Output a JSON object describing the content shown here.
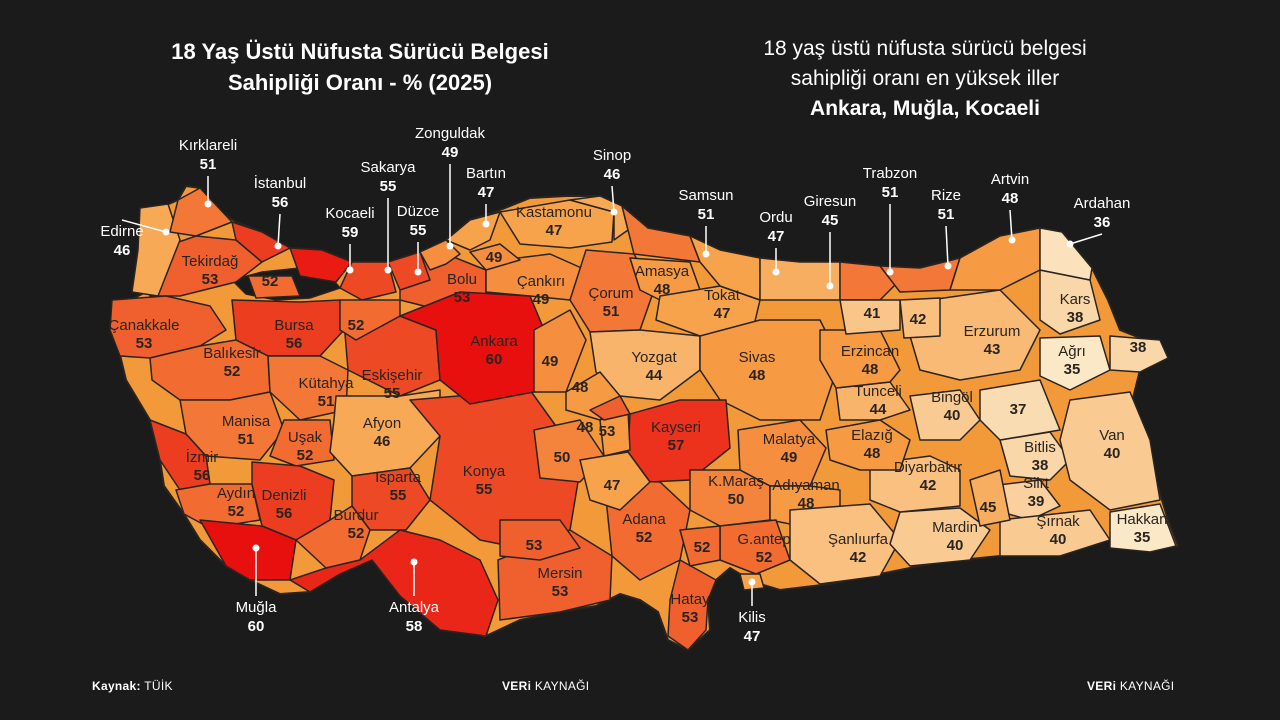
{
  "title_line1": "18 Yaş Üstü Nüfusta Sürücü Belgesi",
  "title_line2": "Sahipliği Oranı - % (2025)",
  "subtitle_line1": "18 yaş üstü nüfusta sürücü belgesi",
  "subtitle_line2": "sahipliği oranı en yüksek iller",
  "subtitle_highlight": "Ankara, Muğla, Kocaeli",
  "footer": {
    "source_label": "Kaynak:",
    "source_value": "TÜİK",
    "brand_center_bold": "VERi",
    "brand_center": "KAYNAĞI",
    "brand_right_bold": "VERi",
    "brand_right": "KAYNAĞI"
  },
  "colors": {
    "background": "#1b1b1b",
    "scale_low": "#fbe8c7",
    "scale_high": "#e80f0f",
    "border": "#2a2420"
  },
  "chart_data": {
    "type": "choropleth",
    "value_unit": "%",
    "provinces_labeled_inside": [
      {
        "name": "Tekirdağ",
        "value": 53
      },
      {
        "name": "Çanakkale",
        "value": 53
      },
      {
        "name": "Bursa",
        "value": 56
      },
      {
        "name": "Balıkesir",
        "value": 52
      },
      {
        "name": "Kütahya",
        "value": 51
      },
      {
        "name": "Eskişehir",
        "value": 55
      },
      {
        "name": "Manisa",
        "value": 51
      },
      {
        "name": "Uşak",
        "value": 52
      },
      {
        "name": "Afyon",
        "value": 46
      },
      {
        "name": "İzmir",
        "value": 56
      },
      {
        "name": "Aydın",
        "value": 52
      },
      {
        "name": "Denizli",
        "value": 56
      },
      {
        "name": "Isparta",
        "value": 55
      },
      {
        "name": "Burdur",
        "value": 52
      },
      {
        "name": "Konya",
        "value": 55
      },
      {
        "name": "Bolu",
        "value": 53
      },
      {
        "name": "Ankara",
        "value": 60
      },
      {
        "name": "Kastamonu",
        "value": 47
      },
      {
        "name": "Çankırı",
        "value": 49
      },
      {
        "name": "Çorum",
        "value": 51
      },
      {
        "name": "Amasya",
        "value": 48
      },
      {
        "name": "Tokat",
        "value": 47
      },
      {
        "name": "Yozgat",
        "value": 44
      },
      {
        "name": "Sivas",
        "value": 48
      },
      {
        "name": "Kayseri",
        "value": 57
      },
      {
        "name": "Malatya",
        "value": 49
      },
      {
        "name": "K.Maraş",
        "value": 50
      },
      {
        "name": "Adıyaman",
        "value": 48
      },
      {
        "name": "Adana",
        "value": 52
      },
      {
        "name": "Mersin",
        "value": 53
      },
      {
        "name": "G.antep",
        "value": 52
      },
      {
        "name": "Hatay",
        "value": 53
      },
      {
        "name": "Şanlıurfa",
        "value": 42
      },
      {
        "name": "Mardin",
        "value": 40
      },
      {
        "name": "Diyarbakır",
        "value": 42
      },
      {
        "name": "Elazığ",
        "value": 48
      },
      {
        "name": "Tunceli",
        "value": 44
      },
      {
        "name": "Erzincan",
        "value": 48
      },
      {
        "name": "Bingöl",
        "value": 40
      },
      {
        "name": "Erzurum",
        "value": 43
      },
      {
        "name": "Kars",
        "value": 38
      },
      {
        "name": "Ağrı",
        "value": 35
      },
      {
        "name": "Bitlis",
        "value": 38
      },
      {
        "name": "Siirt",
        "value": 39
      },
      {
        "name": "Şırnak",
        "value": 40
      },
      {
        "name": "Van",
        "value": 40
      },
      {
        "name": "Hakkari",
        "value": 35
      }
    ],
    "provinces_labeled_outside": [
      {
        "name": "Edirne",
        "value": 46
      },
      {
        "name": "Kırklareli",
        "value": 51
      },
      {
        "name": "İstanbul",
        "value": 56
      },
      {
        "name": "Kocaeli",
        "value": 59
      },
      {
        "name": "Sakarya",
        "value": 55
      },
      {
        "name": "Düzce",
        "value": 55
      },
      {
        "name": "Zonguldak",
        "value": 49
      },
      {
        "name": "Bartın",
        "value": 47
      },
      {
        "name": "Sinop",
        "value": 46
      },
      {
        "name": "Samsun",
        "value": 51
      },
      {
        "name": "Ordu",
        "value": 47
      },
      {
        "name": "Giresun",
        "value": 45
      },
      {
        "name": "Trabzon",
        "value": 51
      },
      {
        "name": "Rize",
        "value": 51
      },
      {
        "name": "Artvin",
        "value": 48
      },
      {
        "name": "Ardahan",
        "value": 36
      },
      {
        "name": "Muğla",
        "value": 60
      },
      {
        "name": "Antalya",
        "value": 58
      },
      {
        "name": "Kilis",
        "value": 47
      }
    ],
    "unnamed_values": [
      52,
      52,
      49,
      49,
      48,
      48,
      53,
      50,
      47,
      53,
      52,
      41,
      42,
      37,
      45,
      38
    ]
  }
}
